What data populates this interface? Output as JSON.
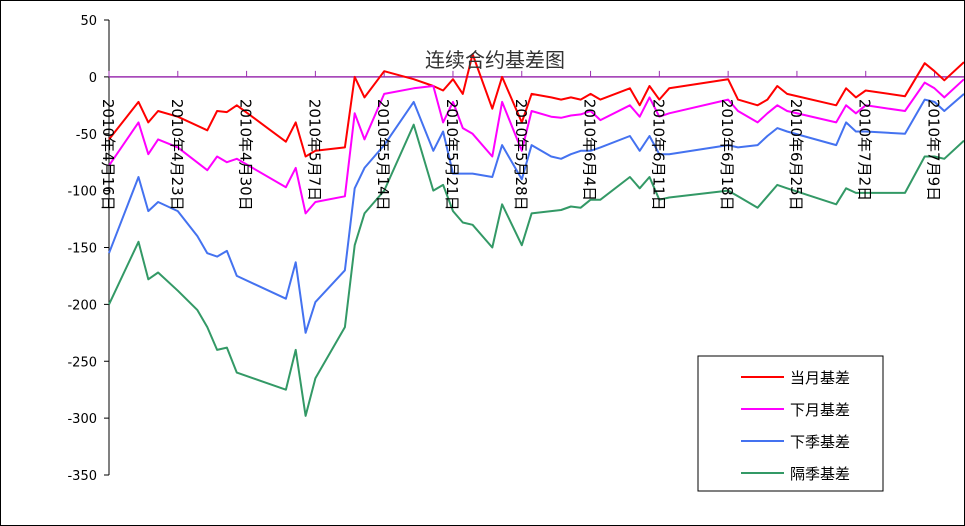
{
  "chart_data": {
    "type": "line",
    "title": "连续合约基差图",
    "xlabel": "",
    "ylabel": "",
    "ylim": [
      -350,
      50
    ],
    "yticks": [
      50,
      0,
      -50,
      -100,
      -150,
      -200,
      -250,
      -300,
      -350
    ],
    "x_tick_labels": [
      "2010年4月16日",
      "2010年4月23日",
      "2010年4月30日",
      "2010年5月7日",
      "2010年5月14日",
      "2010年5月21日",
      "2010年5月28日",
      "2010年6月4日",
      "2010年6月11日",
      "2010年6月18日",
      "2010年6月25日",
      "2010年7月2日",
      "2010年7月9日"
    ],
    "x_tick_days": [
      0,
      7,
      14,
      21,
      28,
      35,
      42,
      49,
      56,
      63,
      70,
      77,
      84
    ],
    "x_range_days": [
      0,
      87
    ],
    "legend_position": "bottom-right",
    "series": [
      {
        "name": "当月基差",
        "color": "#ff0000",
        "points": [
          [
            0,
            -55
          ],
          [
            3,
            -22
          ],
          [
            4,
            -40
          ],
          [
            5,
            -30
          ],
          [
            7,
            -35
          ],
          [
            10,
            -47
          ],
          [
            11,
            -30
          ],
          [
            12,
            -31
          ],
          [
            13,
            -25
          ],
          [
            18,
            -57
          ],
          [
            19,
            -40
          ],
          [
            20,
            -70
          ],
          [
            21,
            -65
          ],
          [
            24,
            -62
          ],
          [
            25,
            0
          ],
          [
            26,
            -18
          ],
          [
            28,
            5
          ],
          [
            31,
            -2
          ],
          [
            33,
            -8
          ],
          [
            34,
            -12
          ],
          [
            35,
            -2
          ],
          [
            36,
            -15
          ],
          [
            37,
            20
          ],
          [
            39,
            -28
          ],
          [
            40,
            0
          ],
          [
            42,
            -40
          ],
          [
            43,
            -15
          ],
          [
            45,
            -18
          ],
          [
            46,
            -20
          ],
          [
            47,
            -18
          ],
          [
            48,
            -20
          ],
          [
            49,
            -15
          ],
          [
            50,
            -20
          ],
          [
            53,
            -10
          ],
          [
            54,
            -25
          ],
          [
            55,
            -8
          ],
          [
            56,
            -20
          ],
          [
            57,
            -10
          ],
          [
            63,
            -2
          ],
          [
            64,
            -20
          ],
          [
            66,
            -25
          ],
          [
            67,
            -20
          ],
          [
            68,
            -8
          ],
          [
            69,
            -15
          ],
          [
            74,
            -25
          ],
          [
            75,
            -10
          ],
          [
            76,
            -18
          ],
          [
            77,
            -12
          ],
          [
            81,
            -17
          ],
          [
            83,
            12
          ],
          [
            84,
            5
          ],
          [
            85,
            -3
          ],
          [
            87,
            13
          ]
        ]
      },
      {
        "name": "下月基差",
        "color": "#ff00ff",
        "points": [
          [
            0,
            -78
          ],
          [
            3,
            -40
          ],
          [
            4,
            -68
          ],
          [
            5,
            -55
          ],
          [
            7,
            -62
          ],
          [
            10,
            -82
          ],
          [
            11,
            -70
          ],
          [
            12,
            -75
          ],
          [
            13,
            -72
          ],
          [
            18,
            -97
          ],
          [
            19,
            -80
          ],
          [
            20,
            -120
          ],
          [
            21,
            -110
          ],
          [
            24,
            -105
          ],
          [
            25,
            -32
          ],
          [
            26,
            -55
          ],
          [
            28,
            -15
          ],
          [
            31,
            -10
          ],
          [
            33,
            -8
          ],
          [
            34,
            -40
          ],
          [
            35,
            -22
          ],
          [
            36,
            -45
          ],
          [
            37,
            -50
          ],
          [
            39,
            -70
          ],
          [
            40,
            -22
          ],
          [
            42,
            -65
          ],
          [
            43,
            -30
          ],
          [
            45,
            -35
          ],
          [
            46,
            -36
          ],
          [
            47,
            -34
          ],
          [
            48,
            -33
          ],
          [
            49,
            -30
          ],
          [
            50,
            -38
          ],
          [
            53,
            -25
          ],
          [
            54,
            -35
          ],
          [
            55,
            -18
          ],
          [
            56,
            -35
          ],
          [
            57,
            -32
          ],
          [
            63,
            -20
          ],
          [
            64,
            -30
          ],
          [
            66,
            -40
          ],
          [
            67,
            -32
          ],
          [
            68,
            -25
          ],
          [
            69,
            -30
          ],
          [
            74,
            -40
          ],
          [
            75,
            -25
          ],
          [
            76,
            -32
          ],
          [
            77,
            -25
          ],
          [
            81,
            -30
          ],
          [
            83,
            -5
          ],
          [
            84,
            -10
          ],
          [
            85,
            -18
          ],
          [
            87,
            -2
          ]
        ]
      },
      {
        "name": "下季基差",
        "color": "#4472f0",
        "points": [
          [
            0,
            -155
          ],
          [
            3,
            -88
          ],
          [
            4,
            -118
          ],
          [
            5,
            -110
          ],
          [
            7,
            -118
          ],
          [
            9,
            -140
          ],
          [
            10,
            -155
          ],
          [
            11,
            -158
          ],
          [
            12,
            -153
          ],
          [
            13,
            -175
          ],
          [
            18,
            -195
          ],
          [
            19,
            -163
          ],
          [
            20,
            -225
          ],
          [
            21,
            -198
          ],
          [
            24,
            -170
          ],
          [
            25,
            -98
          ],
          [
            26,
            -80
          ],
          [
            28,
            -60
          ],
          [
            31,
            -22
          ],
          [
            33,
            -65
          ],
          [
            34,
            -48
          ],
          [
            35,
            -85
          ],
          [
            36,
            -85
          ],
          [
            37,
            -85
          ],
          [
            39,
            -88
          ],
          [
            40,
            -60
          ],
          [
            42,
            -90
          ],
          [
            43,
            -60
          ],
          [
            45,
            -70
          ],
          [
            46,
            -72
          ],
          [
            47,
            -68
          ],
          [
            48,
            -65
          ],
          [
            49,
            -65
          ],
          [
            50,
            -62
          ],
          [
            53,
            -52
          ],
          [
            54,
            -65
          ],
          [
            55,
            -52
          ],
          [
            56,
            -68
          ],
          [
            57,
            -68
          ],
          [
            63,
            -60
          ],
          [
            64,
            -62
          ],
          [
            66,
            -60
          ],
          [
            67,
            -52
          ],
          [
            68,
            -45
          ],
          [
            69,
            -48
          ],
          [
            74,
            -60
          ],
          [
            75,
            -40
          ],
          [
            76,
            -48
          ],
          [
            77,
            -48
          ],
          [
            81,
            -50
          ],
          [
            83,
            -20
          ],
          [
            84,
            -22
          ],
          [
            85,
            -30
          ],
          [
            87,
            -15
          ]
        ]
      },
      {
        "name": "隔季基差",
        "color": "#339966",
        "points": [
          [
            0,
            -200
          ],
          [
            3,
            -145
          ],
          [
            4,
            -178
          ],
          [
            5,
            -172
          ],
          [
            7,
            -188
          ],
          [
            9,
            -205
          ],
          [
            10,
            -220
          ],
          [
            11,
            -240
          ],
          [
            12,
            -238
          ],
          [
            13,
            -260
          ],
          [
            18,
            -275
          ],
          [
            19,
            -240
          ],
          [
            20,
            -298
          ],
          [
            21,
            -265
          ],
          [
            24,
            -220
          ],
          [
            25,
            -148
          ],
          [
            26,
            -120
          ],
          [
            28,
            -100
          ],
          [
            31,
            -42
          ],
          [
            33,
            -100
          ],
          [
            34,
            -95
          ],
          [
            35,
            -118
          ],
          [
            36,
            -128
          ],
          [
            37,
            -130
          ],
          [
            39,
            -150
          ],
          [
            40,
            -112
          ],
          [
            42,
            -148
          ],
          [
            43,
            -120
          ],
          [
            45,
            -118
          ],
          [
            46,
            -117
          ],
          [
            47,
            -114
          ],
          [
            48,
            -115
          ],
          [
            49,
            -108
          ],
          [
            50,
            -108
          ],
          [
            53,
            -88
          ],
          [
            54,
            -98
          ],
          [
            55,
            -88
          ],
          [
            56,
            -108
          ],
          [
            57,
            -106
          ],
          [
            63,
            -100
          ],
          [
            64,
            -105
          ],
          [
            66,
            -115
          ],
          [
            67,
            -105
          ],
          [
            68,
            -95
          ],
          [
            69,
            -98
          ],
          [
            74,
            -112
          ],
          [
            75,
            -98
          ],
          [
            76,
            -102
          ],
          [
            77,
            -102
          ],
          [
            81,
            -102
          ],
          [
            83,
            -70
          ],
          [
            84,
            -70
          ],
          [
            85,
            -72
          ],
          [
            87,
            -56
          ]
        ]
      }
    ]
  }
}
